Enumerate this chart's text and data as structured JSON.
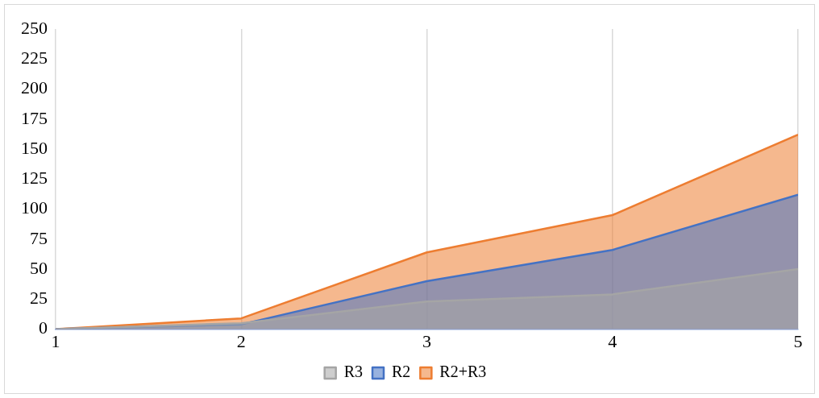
{
  "chart_data": {
    "type": "area",
    "x": [
      1,
      2,
      3,
      4,
      5
    ],
    "series": [
      {
        "name": "R2+R3",
        "color": "#ed7d31",
        "values": [
          0,
          9,
          64,
          95,
          162
        ]
      },
      {
        "name": "R2",
        "color": "#4472c4",
        "values": [
          0,
          4,
          40,
          66,
          112
        ]
      },
      {
        "name": "R3",
        "color": "#a5a5a5",
        "values": [
          0,
          5,
          23,
          29,
          50
        ]
      }
    ],
    "xlim": [
      1,
      5
    ],
    "xticks": [
      1,
      2,
      3,
      4,
      5
    ],
    "ylim": [
      0,
      250
    ],
    "yticks": [
      0,
      25,
      50,
      75,
      100,
      125,
      150,
      175,
      200,
      225,
      250
    ],
    "grid": "x",
    "legend": "bottom"
  }
}
